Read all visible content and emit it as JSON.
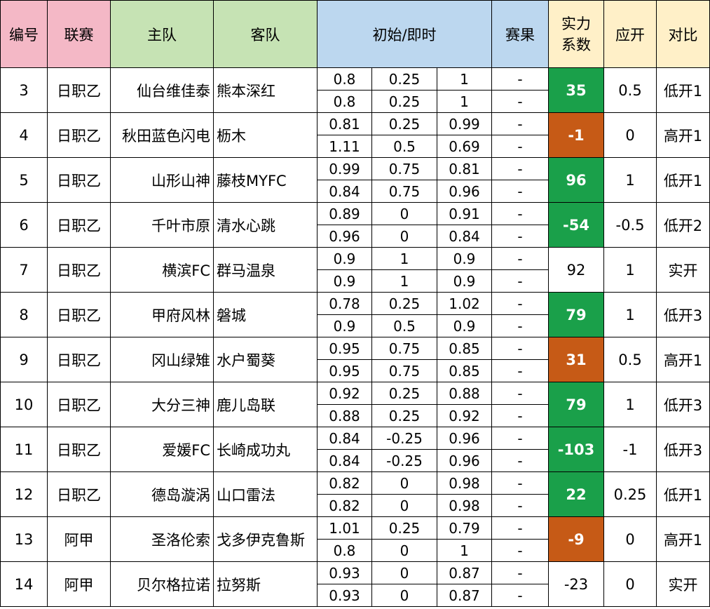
{
  "headers": {
    "id": "编号",
    "league": "联赛",
    "home": "主队",
    "away": "客队",
    "odds": "初始/即时",
    "result": "赛果",
    "strength_line1": "实力",
    "strength_line2": "系数",
    "expected": "应开",
    "compare": "对比"
  },
  "colors": {
    "header_pink": "#f4b8c6",
    "header_green": "#c6e3b4",
    "header_blue": "#bcd7ef",
    "header_yellow": "#fff0c8",
    "strength_green": "#1aa04a",
    "strength_orange": "#c65a16"
  },
  "rows": [
    {
      "id": "3",
      "league": "日职乙",
      "home": "仙台维佳泰",
      "away": "熊本深红",
      "initial": [
        "0.8",
        "0.25",
        "1"
      ],
      "live": [
        "0.8",
        "0.25",
        "1"
      ],
      "result": [
        "-",
        "-"
      ],
      "strength": "35",
      "strength_color": "green",
      "expected": "0.5",
      "compare": "低开1"
    },
    {
      "id": "4",
      "league": "日职乙",
      "home": "秋田蓝色闪电",
      "away": "枥木",
      "initial": [
        "0.81",
        "0.25",
        "0.99"
      ],
      "live": [
        "1.11",
        "0.5",
        "0.69"
      ],
      "result": [
        "-",
        "-"
      ],
      "strength": "-1",
      "strength_color": "orange",
      "expected": "0",
      "compare": "高开1"
    },
    {
      "id": "5",
      "league": "日职乙",
      "home": "山形山神",
      "away": "藤枝MYFC",
      "initial": [
        "0.99",
        "0.75",
        "0.81"
      ],
      "live": [
        "0.84",
        "0.75",
        "0.96"
      ],
      "result": [
        "-",
        "-"
      ],
      "strength": "96",
      "strength_color": "green",
      "expected": "1",
      "compare": "低开1"
    },
    {
      "id": "6",
      "league": "日职乙",
      "home": "千叶市原",
      "away": "清水心跳",
      "initial": [
        "0.89",
        "0",
        "0.91"
      ],
      "live": [
        "0.96",
        "0",
        "0.84"
      ],
      "result": [
        "-",
        "-"
      ],
      "strength": "-54",
      "strength_color": "green",
      "expected": "-0.5",
      "compare": "低开2"
    },
    {
      "id": "7",
      "league": "日职乙",
      "home": "横滨FC",
      "away": "群马温泉",
      "initial": [
        "0.9",
        "1",
        "0.9"
      ],
      "live": [
        "0.9",
        "1",
        "0.9"
      ],
      "result": [
        "-",
        "-"
      ],
      "strength": "92",
      "strength_color": "none",
      "expected": "1",
      "compare": "实开"
    },
    {
      "id": "8",
      "league": "日职乙",
      "home": "甲府风林",
      "away": "磐城",
      "initial": [
        "0.78",
        "0.25",
        "1.02"
      ],
      "live": [
        "0.9",
        "0.5",
        "0.9"
      ],
      "result": [
        "-",
        "-"
      ],
      "strength": "79",
      "strength_color": "green",
      "expected": "1",
      "compare": "低开3"
    },
    {
      "id": "9",
      "league": "日职乙",
      "home": "冈山绿雉",
      "away": "水户蜀葵",
      "initial": [
        "0.95",
        "0.75",
        "0.85"
      ],
      "live": [
        "0.95",
        "0.75",
        "0.85"
      ],
      "result": [
        "-",
        "-"
      ],
      "strength": "31",
      "strength_color": "orange",
      "expected": "0.5",
      "compare": "高开1"
    },
    {
      "id": "10",
      "league": "日职乙",
      "home": "大分三神",
      "away": "鹿儿岛联",
      "initial": [
        "0.92",
        "0.25",
        "0.88"
      ],
      "live": [
        "0.88",
        "0.25",
        "0.92"
      ],
      "result": [
        "-",
        "-"
      ],
      "strength": "79",
      "strength_color": "green",
      "expected": "1",
      "compare": "低开3"
    },
    {
      "id": "11",
      "league": "日职乙",
      "home": "爱媛FC",
      "away": "长崎成功丸",
      "initial": [
        "0.84",
        "-0.25",
        "0.96"
      ],
      "live": [
        "0.84",
        "-0.25",
        "0.96"
      ],
      "result": [
        "-",
        "-"
      ],
      "strength": "-103",
      "strength_color": "green",
      "expected": "-1",
      "compare": "低开3"
    },
    {
      "id": "12",
      "league": "日职乙",
      "home": "德岛漩涡",
      "away": "山口雷法",
      "initial": [
        "0.82",
        "0",
        "0.98"
      ],
      "live": [
        "0.82",
        "0",
        "0.98"
      ],
      "result": [
        "-",
        "-"
      ],
      "strength": "22",
      "strength_color": "green",
      "expected": "0.25",
      "compare": "低开1"
    },
    {
      "id": "13",
      "league": "阿甲",
      "home": "圣洛伦索",
      "away": "戈多伊克鲁斯",
      "initial": [
        "1.01",
        "0.25",
        "0.79"
      ],
      "live": [
        "0.8",
        "0",
        "1"
      ],
      "result": [
        "-",
        "-"
      ],
      "strength": "-9",
      "strength_color": "orange",
      "expected": "0",
      "compare": "高开1"
    },
    {
      "id": "14",
      "league": "阿甲",
      "home": "贝尔格拉诺",
      "away": "拉努斯",
      "initial": [
        "0.93",
        "0",
        "0.87"
      ],
      "live": [
        "0.93",
        "0",
        "0.87"
      ],
      "result": [
        "-",
        "-"
      ],
      "strength": "-23",
      "strength_color": "none",
      "expected": "0",
      "compare": "实开"
    }
  ]
}
